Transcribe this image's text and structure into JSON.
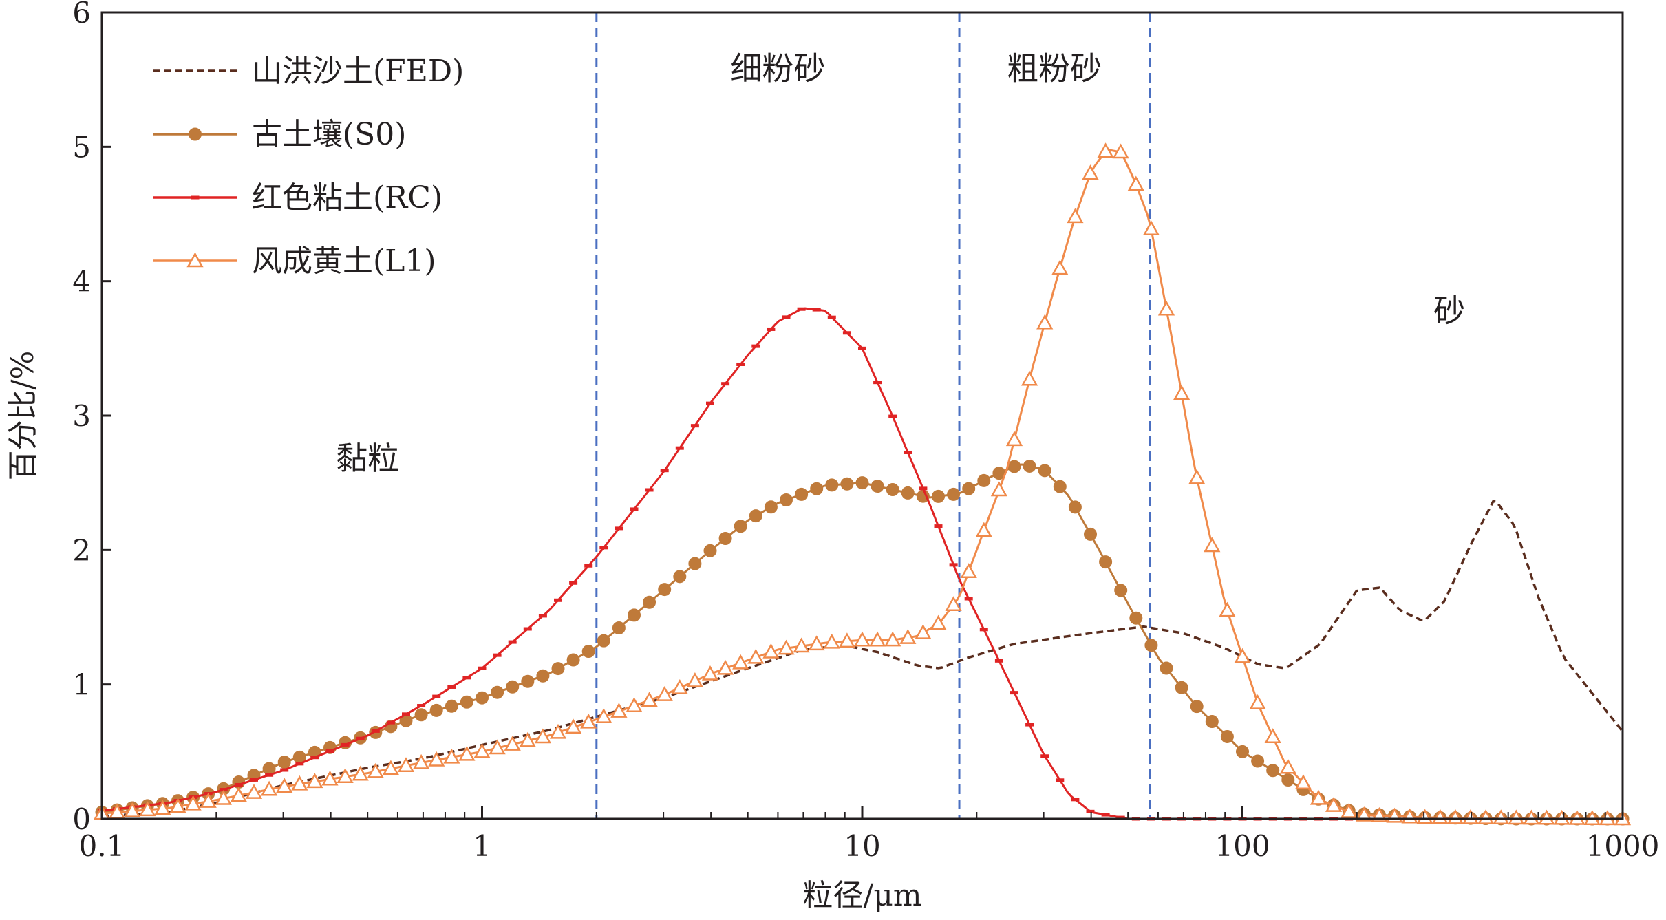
{
  "chart_data": {
    "type": "line",
    "xlabel": "粒径/μm",
    "ylabel": "百分比/%",
    "x_scale": "log",
    "xlim": [
      0.1,
      1000
    ],
    "ylim": [
      0,
      6
    ],
    "x_ticks": [
      "0.1",
      "1",
      "10",
      "100",
      "1000"
    ],
    "y_ticks": [
      "0",
      "1",
      "2",
      "3",
      "4",
      "5",
      "6"
    ],
    "legend_position": "top-left",
    "boundaries": [
      2,
      18,
      57
    ],
    "regions": [
      {
        "label": "黏粒",
        "x": 0.5,
        "y": 2.6
      },
      {
        "label": "细粉砂",
        "x": 6,
        "y": 5.5
      },
      {
        "label": "粗粉砂",
        "x": 32,
        "y": 5.5
      },
      {
        "label": "砂",
        "x": 350,
        "y": 3.7
      }
    ],
    "series": [
      {
        "name": "山洪沙土(FED)",
        "color": "#5a2d1e",
        "style": "dashed",
        "marker": "none",
        "points": [
          [
            0.1,
            0.02
          ],
          [
            0.15,
            0.05
          ],
          [
            0.2,
            0.12
          ],
          [
            0.3,
            0.25
          ],
          [
            0.5,
            0.38
          ],
          [
            0.7,
            0.45
          ],
          [
            1,
            0.55
          ],
          [
            1.5,
            0.66
          ],
          [
            2,
            0.76
          ],
          [
            3,
            0.9
          ],
          [
            5,
            1.12
          ],
          [
            7,
            1.26
          ],
          [
            9,
            1.29
          ],
          [
            11,
            1.24
          ],
          [
            14,
            1.14
          ],
          [
            16,
            1.12
          ],
          [
            19,
            1.2
          ],
          [
            25,
            1.3
          ],
          [
            35,
            1.36
          ],
          [
            45,
            1.4
          ],
          [
            55,
            1.43
          ],
          [
            70,
            1.38
          ],
          [
            90,
            1.27
          ],
          [
            110,
            1.15
          ],
          [
            130,
            1.12
          ],
          [
            160,
            1.3
          ],
          [
            200,
            1.7
          ],
          [
            230,
            1.72
          ],
          [
            260,
            1.55
          ],
          [
            300,
            1.47
          ],
          [
            340,
            1.62
          ],
          [
            400,
            2.05
          ],
          [
            460,
            2.38
          ],
          [
            520,
            2.18
          ],
          [
            600,
            1.65
          ],
          [
            700,
            1.2
          ],
          [
            850,
            0.9
          ],
          [
            1000,
            0.65
          ]
        ]
      },
      {
        "name": "古土壤(S0)",
        "color": "#bf7a3a",
        "style": "solid",
        "marker": "circle",
        "points": [
          [
            0.1,
            0.05
          ],
          [
            0.15,
            0.12
          ],
          [
            0.2,
            0.2
          ],
          [
            0.3,
            0.42
          ],
          [
            0.5,
            0.62
          ],
          [
            0.7,
            0.78
          ],
          [
            1,
            0.9
          ],
          [
            1.5,
            1.08
          ],
          [
            2,
            1.28
          ],
          [
            3,
            1.7
          ],
          [
            4,
            2.0
          ],
          [
            5,
            2.22
          ],
          [
            6,
            2.35
          ],
          [
            8,
            2.48
          ],
          [
            10,
            2.5
          ],
          [
            12,
            2.45
          ],
          [
            15,
            2.39
          ],
          [
            18,
            2.42
          ],
          [
            22,
            2.55
          ],
          [
            26,
            2.64
          ],
          [
            30,
            2.6
          ],
          [
            35,
            2.4
          ],
          [
            42,
            2.0
          ],
          [
            50,
            1.6
          ],
          [
            60,
            1.2
          ],
          [
            75,
            0.85
          ],
          [
            100,
            0.5
          ],
          [
            130,
            0.3
          ],
          [
            160,
            0.14
          ],
          [
            200,
            0.04
          ],
          [
            300,
            0.01
          ],
          [
            500,
            0.0
          ],
          [
            1000,
            0.0
          ]
        ]
      },
      {
        "name": "红色粘土(RC)",
        "color": "#e02424",
        "style": "solid",
        "marker": "dash",
        "points": [
          [
            0.1,
            0.06
          ],
          [
            0.15,
            0.12
          ],
          [
            0.2,
            0.2
          ],
          [
            0.3,
            0.36
          ],
          [
            0.5,
            0.62
          ],
          [
            0.7,
            0.85
          ],
          [
            1,
            1.12
          ],
          [
            1.5,
            1.55
          ],
          [
            2,
            1.95
          ],
          [
            3,
            2.58
          ],
          [
            4,
            3.1
          ],
          [
            5,
            3.45
          ],
          [
            6,
            3.7
          ],
          [
            7,
            3.8
          ],
          [
            8,
            3.78
          ],
          [
            10,
            3.5
          ],
          [
            12,
            3.0
          ],
          [
            15,
            2.35
          ],
          [
            18,
            1.78
          ],
          [
            22,
            1.28
          ],
          [
            26,
            0.85
          ],
          [
            30,
            0.48
          ],
          [
            35,
            0.18
          ],
          [
            40,
            0.05
          ],
          [
            50,
            0.0
          ],
          [
            100,
            0.0
          ],
          [
            1000,
            0.0
          ]
        ]
      },
      {
        "name": "风成黄土(L1)",
        "color": "#f08a4a",
        "style": "solid",
        "marker": "triangle",
        "points": [
          [
            0.1,
            0.04
          ],
          [
            0.15,
            0.08
          ],
          [
            0.2,
            0.14
          ],
          [
            0.3,
            0.24
          ],
          [
            0.5,
            0.34
          ],
          [
            0.7,
            0.42
          ],
          [
            1,
            0.5
          ],
          [
            1.5,
            0.62
          ],
          [
            2,
            0.74
          ],
          [
            3,
            0.92
          ],
          [
            4,
            1.08
          ],
          [
            5,
            1.18
          ],
          [
            6,
            1.26
          ],
          [
            8,
            1.31
          ],
          [
            10,
            1.33
          ],
          [
            12,
            1.33
          ],
          [
            14,
            1.36
          ],
          [
            16,
            1.46
          ],
          [
            18,
            1.65
          ],
          [
            20,
            2.0
          ],
          [
            24,
            2.6
          ],
          [
            28,
            3.35
          ],
          [
            32,
            3.95
          ],
          [
            36,
            4.45
          ],
          [
            40,
            4.82
          ],
          [
            44,
            4.98
          ],
          [
            48,
            4.96
          ],
          [
            52,
            4.75
          ],
          [
            57,
            4.45
          ],
          [
            65,
            3.6
          ],
          [
            75,
            2.6
          ],
          [
            90,
            1.6
          ],
          [
            110,
            0.85
          ],
          [
            130,
            0.4
          ],
          [
            160,
            0.14
          ],
          [
            200,
            0.03
          ],
          [
            300,
            0.01
          ],
          [
            1000,
            0.0
          ]
        ]
      }
    ]
  }
}
